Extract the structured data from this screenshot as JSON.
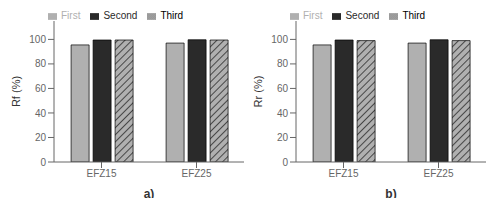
{
  "chart_data": [
    {
      "type": "bar",
      "xlabel": "a)",
      "ylabel": "Rf (%)",
      "categories": [
        "EFZ15",
        "EFZ25"
      ],
      "series": [
        {
          "name": "First",
          "color": "#b0b0b0",
          "values": [
            95.5,
            97.0
          ]
        },
        {
          "name": "Second",
          "color": "#2a2a2a",
          "values": [
            99.5,
            99.7
          ]
        },
        {
          "name": "Third",
          "color": "#b0b0b0",
          "values": [
            99.5,
            99.5
          ]
        }
      ],
      "ylim": [
        0,
        115
      ],
      "yticks": [
        0,
        20,
        40,
        60,
        80,
        100
      ],
      "grid": false,
      "legend": "upper left"
    },
    {
      "type": "bar",
      "xlabel": "b)",
      "ylabel": "Rr (%)",
      "categories": [
        "EFZ15",
        "EFZ25"
      ],
      "series": [
        {
          "name": "First",
          "color": "#b0b0b0",
          "values": [
            95.5,
            97.0
          ]
        },
        {
          "name": "Second",
          "color": "#2a2a2a",
          "values": [
            99.5,
            99.7
          ]
        },
        {
          "name": "Third",
          "color": "#b0b0b0",
          "values": [
            99.0,
            99.0
          ]
        }
      ],
      "ylim": [
        0,
        115
      ],
      "yticks": [
        0,
        20,
        40,
        60,
        80,
        100
      ],
      "grid": false,
      "legend": "upper left"
    }
  ]
}
